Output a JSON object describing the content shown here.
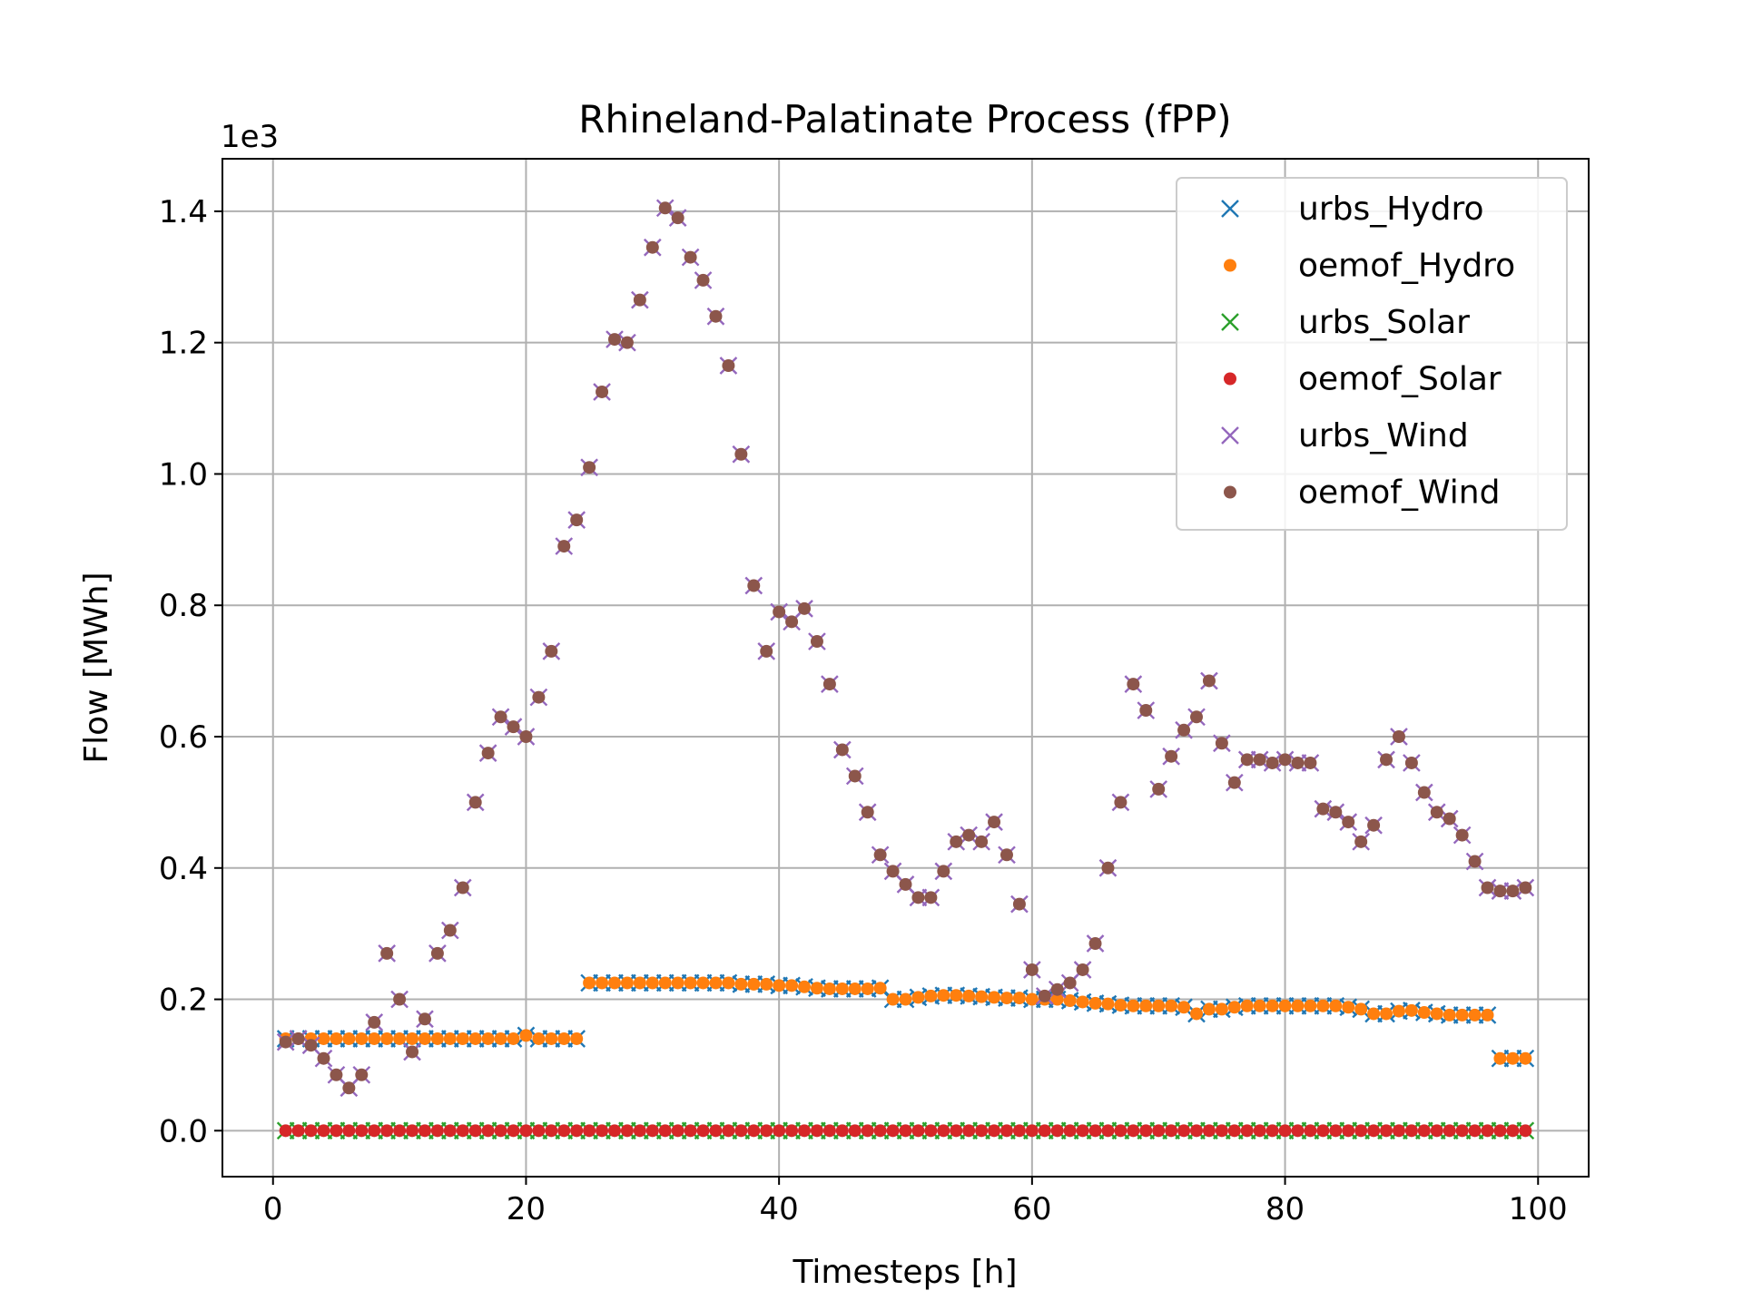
{
  "chart_data": {
    "type": "scatter",
    "title": "Rhineland-Palatinate Process (fPP)",
    "xlabel": "Timesteps [h]",
    "ylabel": "Flow [MWh]",
    "y_offset_text": "1e3",
    "xlim": [
      -4,
      104
    ],
    "ylim": [
      -0.07,
      1.48
    ],
    "x_ticks": [
      0,
      20,
      40,
      60,
      80,
      100
    ],
    "x_tick_labels": [
      "0",
      "20",
      "40",
      "60",
      "80",
      "100"
    ],
    "y_ticks": [
      0.0,
      0.2,
      0.4,
      0.6,
      0.8,
      1.0,
      1.2,
      1.4
    ],
    "y_tick_labels": [
      "0.0",
      "0.2",
      "0.4",
      "0.6",
      "0.8",
      "1.0",
      "1.2",
      "1.4"
    ],
    "grid": true,
    "legend_position": "top-right",
    "x": [
      1,
      2,
      3,
      4,
      5,
      6,
      7,
      8,
      9,
      10,
      11,
      12,
      13,
      14,
      15,
      16,
      17,
      18,
      19,
      20,
      21,
      22,
      23,
      24,
      25,
      26,
      27,
      28,
      29,
      30,
      31,
      32,
      33,
      34,
      35,
      36,
      37,
      38,
      39,
      40,
      41,
      42,
      43,
      44,
      45,
      46,
      47,
      48,
      49,
      50,
      51,
      52,
      53,
      54,
      55,
      56,
      57,
      58,
      59,
      60,
      61,
      62,
      63,
      64,
      65,
      66,
      67,
      68,
      69,
      70,
      71,
      72,
      73,
      74,
      75,
      76,
      77,
      78,
      79,
      80,
      81,
      82,
      83,
      84,
      85,
      86,
      87,
      88,
      89,
      90,
      91,
      92,
      93,
      94,
      95,
      96,
      97,
      98,
      99
    ],
    "series": [
      {
        "name": "urbs_Hydro",
        "marker": "x",
        "color": "#1f77b4",
        "values": [
          0.14,
          0.14,
          0.14,
          0.14,
          0.14,
          0.14,
          0.14,
          0.14,
          0.14,
          0.14,
          0.14,
          0.14,
          0.14,
          0.14,
          0.14,
          0.14,
          0.14,
          0.14,
          0.14,
          0.145,
          0.14,
          0.14,
          0.14,
          0.14,
          0.225,
          0.225,
          0.225,
          0.225,
          0.225,
          0.225,
          0.225,
          0.225,
          0.225,
          0.225,
          0.225,
          0.225,
          0.223,
          0.223,
          0.223,
          0.221,
          0.221,
          0.219,
          0.217,
          0.216,
          0.216,
          0.216,
          0.216,
          0.217,
          0.2,
          0.2,
          0.203,
          0.205,
          0.206,
          0.206,
          0.205,
          0.204,
          0.203,
          0.202,
          0.202,
          0.2,
          0.2,
          0.2,
          0.198,
          0.196,
          0.194,
          0.193,
          0.191,
          0.19,
          0.19,
          0.19,
          0.19,
          0.188,
          0.178,
          0.185,
          0.185,
          0.188,
          0.19,
          0.19,
          0.19,
          0.19,
          0.19,
          0.19,
          0.19,
          0.19,
          0.188,
          0.185,
          0.178,
          0.178,
          0.182,
          0.183,
          0.18,
          0.178,
          0.176,
          0.176,
          0.176,
          0.176,
          0.11,
          0.11,
          0.11
        ]
      },
      {
        "name": "oemof_Hydro",
        "marker": "o",
        "color": "#ff7f0e",
        "values": [
          0.14,
          0.14,
          0.14,
          0.14,
          0.14,
          0.14,
          0.14,
          0.14,
          0.14,
          0.14,
          0.14,
          0.14,
          0.14,
          0.14,
          0.14,
          0.14,
          0.14,
          0.14,
          0.14,
          0.145,
          0.14,
          0.14,
          0.14,
          0.14,
          0.225,
          0.225,
          0.225,
          0.225,
          0.225,
          0.225,
          0.225,
          0.225,
          0.225,
          0.225,
          0.225,
          0.225,
          0.223,
          0.223,
          0.223,
          0.221,
          0.221,
          0.219,
          0.217,
          0.216,
          0.216,
          0.216,
          0.216,
          0.217,
          0.2,
          0.2,
          0.203,
          0.205,
          0.206,
          0.206,
          0.205,
          0.204,
          0.203,
          0.202,
          0.202,
          0.2,
          0.2,
          0.2,
          0.198,
          0.196,
          0.194,
          0.193,
          0.191,
          0.19,
          0.19,
          0.19,
          0.19,
          0.188,
          0.178,
          0.185,
          0.185,
          0.188,
          0.19,
          0.19,
          0.19,
          0.19,
          0.19,
          0.19,
          0.19,
          0.19,
          0.188,
          0.185,
          0.178,
          0.178,
          0.182,
          0.183,
          0.18,
          0.178,
          0.176,
          0.176,
          0.176,
          0.176,
          0.11,
          0.11,
          0.11
        ]
      },
      {
        "name": "urbs_Solar",
        "marker": "x",
        "color": "#2ca02c",
        "values": [
          0,
          0,
          0,
          0,
          0,
          0,
          0,
          0,
          0,
          0,
          0,
          0,
          0,
          0,
          0,
          0,
          0,
          0,
          0,
          0,
          0,
          0,
          0,
          0,
          0,
          0,
          0,
          0,
          0,
          0,
          0,
          0,
          0,
          0,
          0,
          0,
          0,
          0,
          0,
          0,
          0,
          0,
          0,
          0,
          0,
          0,
          0,
          0,
          0,
          0,
          0,
          0,
          0,
          0,
          0,
          0,
          0,
          0,
          0,
          0,
          0,
          0,
          0,
          0,
          0,
          0,
          0,
          0,
          0,
          0,
          0,
          0,
          0,
          0,
          0,
          0,
          0,
          0,
          0,
          0,
          0,
          0,
          0,
          0,
          0,
          0,
          0,
          0,
          0,
          0,
          0,
          0,
          0,
          0,
          0,
          0,
          0,
          0,
          0
        ]
      },
      {
        "name": "oemof_Solar",
        "marker": "o",
        "color": "#d62728",
        "values": [
          0,
          0,
          0,
          0,
          0,
          0,
          0,
          0,
          0,
          0,
          0,
          0,
          0,
          0,
          0,
          0,
          0,
          0,
          0,
          0,
          0,
          0,
          0,
          0,
          0,
          0,
          0,
          0,
          0,
          0,
          0,
          0,
          0,
          0,
          0,
          0,
          0,
          0,
          0,
          0,
          0,
          0,
          0,
          0,
          0,
          0,
          0,
          0,
          0,
          0,
          0,
          0,
          0,
          0,
          0,
          0,
          0,
          0,
          0,
          0,
          0,
          0,
          0,
          0,
          0,
          0,
          0,
          0,
          0,
          0,
          0,
          0,
          0,
          0,
          0,
          0,
          0,
          0,
          0,
          0,
          0,
          0,
          0,
          0,
          0,
          0,
          0,
          0,
          0,
          0,
          0,
          0,
          0,
          0,
          0,
          0,
          0,
          0,
          0
        ]
      },
      {
        "name": "urbs_Wind",
        "marker": "x",
        "color": "#9467bd",
        "values": [
          0.135,
          0.14,
          0.13,
          0.11,
          0.085,
          0.065,
          0.085,
          0.165,
          0.27,
          0.2,
          0.12,
          0.17,
          0.27,
          0.305,
          0.37,
          0.5,
          0.575,
          0.63,
          0.615,
          0.6,
          0.66,
          0.73,
          0.89,
          0.93,
          1.01,
          1.125,
          1.205,
          1.2,
          1.265,
          1.345,
          1.405,
          1.39,
          1.33,
          1.295,
          1.24,
          1.165,
          1.03,
          0.83,
          0.73,
          0.79,
          0.775,
          0.795,
          0.745,
          0.68,
          0.58,
          0.54,
          0.485,
          0.42,
          0.395,
          0.375,
          0.355,
          0.355,
          0.395,
          0.44,
          0.45,
          0.44,
          0.47,
          0.42,
          0.345,
          0.245,
          0.205,
          0.215,
          0.225,
          0.245,
          0.285,
          0.4,
          0.5,
          0.68,
          0.64,
          0.52,
          0.57,
          0.61,
          0.63,
          0.685,
          0.59,
          0.53,
          0.565,
          0.565,
          0.56,
          0.565,
          0.56,
          0.56,
          0.49,
          0.485,
          0.47,
          0.44,
          0.465,
          0.565,
          0.6,
          0.56,
          0.515,
          0.485,
          0.475,
          0.45,
          0.41,
          0.37,
          0.365,
          0.365,
          0.37
        ]
      },
      {
        "name": "oemof_Wind",
        "marker": "o",
        "color": "#8c564b",
        "values": [
          0.135,
          0.14,
          0.13,
          0.11,
          0.085,
          0.065,
          0.085,
          0.165,
          0.27,
          0.2,
          0.12,
          0.17,
          0.27,
          0.305,
          0.37,
          0.5,
          0.575,
          0.63,
          0.615,
          0.6,
          0.66,
          0.73,
          0.89,
          0.93,
          1.01,
          1.125,
          1.205,
          1.2,
          1.265,
          1.345,
          1.405,
          1.39,
          1.33,
          1.295,
          1.24,
          1.165,
          1.03,
          0.83,
          0.73,
          0.79,
          0.775,
          0.795,
          0.745,
          0.68,
          0.58,
          0.54,
          0.485,
          0.42,
          0.395,
          0.375,
          0.355,
          0.355,
          0.395,
          0.44,
          0.45,
          0.44,
          0.47,
          0.42,
          0.345,
          0.245,
          0.205,
          0.215,
          0.225,
          0.245,
          0.285,
          0.4,
          0.5,
          0.68,
          0.64,
          0.52,
          0.57,
          0.61,
          0.63,
          0.685,
          0.59,
          0.53,
          0.565,
          0.565,
          0.56,
          0.565,
          0.56,
          0.56,
          0.49,
          0.485,
          0.47,
          0.44,
          0.465,
          0.565,
          0.6,
          0.56,
          0.515,
          0.485,
          0.475,
          0.45,
          0.41,
          0.37,
          0.365,
          0.365,
          0.37
        ]
      }
    ]
  }
}
